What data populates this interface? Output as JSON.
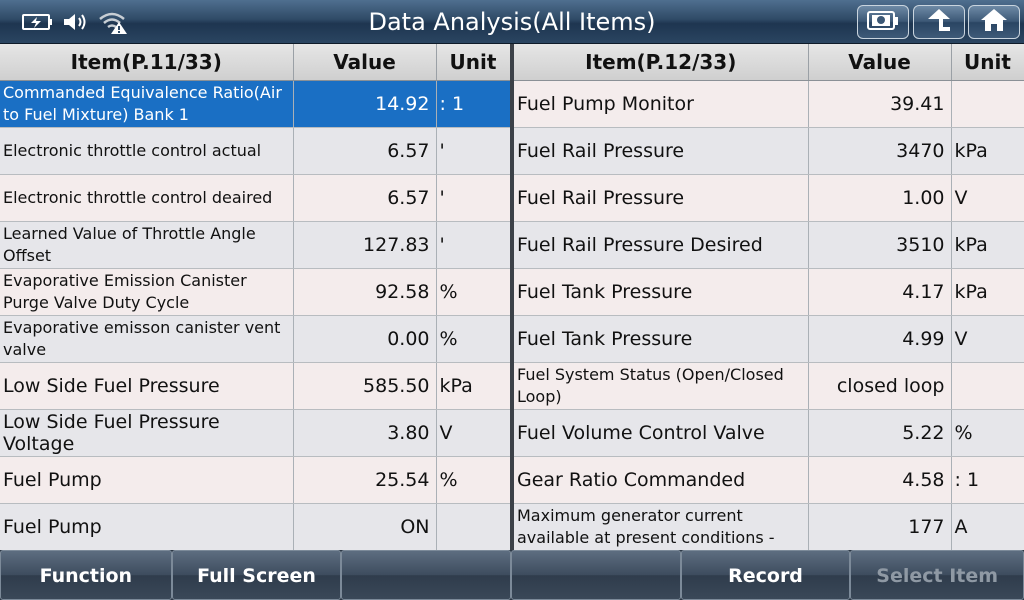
{
  "title": "Data Analysis(All Items)",
  "status_icons": [
    "battery-charging-icon",
    "speaker-icon",
    "wifi-warning-icon"
  ],
  "toolbar_icons": [
    "screenshot-icon",
    "back-icon",
    "home-icon"
  ],
  "left": {
    "headers": {
      "item": "Item(P.11/33)",
      "value": "Value",
      "unit": "Unit"
    },
    "rows": [
      {
        "item": "Commanded Equivalence Ratio(Air to Fuel Mixture) Bank 1",
        "value": "14.92",
        "unit": ": 1",
        "selected": true
      },
      {
        "item": "Electronic throttle control actual",
        "value": "6.57",
        "unit": "'"
      },
      {
        "item": "Electronic throttle control deaired",
        "value": "6.57",
        "unit": "'"
      },
      {
        "item": "Learned Value of Throttle Angle Offset",
        "value": "127.83",
        "unit": "'"
      },
      {
        "item": "Evaporative Emission Canister Purge Valve Duty Cycle",
        "value": "92.58",
        "unit": "%"
      },
      {
        "item": "Evaporative emisson canister vent valve",
        "value": "0.00",
        "unit": "%"
      },
      {
        "item": "Low Side Fuel Pressure",
        "value": "585.50",
        "unit": "kPa"
      },
      {
        "item": "Low Side Fuel Pressure Voltage",
        "value": "3.80",
        "unit": "V"
      },
      {
        "item": "Fuel Pump",
        "value": "25.54",
        "unit": "%"
      },
      {
        "item": "Fuel Pump",
        "value": "ON",
        "unit": ""
      }
    ]
  },
  "right": {
    "headers": {
      "item": "Item(P.12/33)",
      "value": "Value",
      "unit": "Unit"
    },
    "rows": [
      {
        "item": "Fuel Pump Monitor",
        "value": "39.41",
        "unit": ""
      },
      {
        "item": "Fuel Rail Pressure",
        "value": "3470",
        "unit": "kPa"
      },
      {
        "item": "Fuel Rail Pressure",
        "value": "1.00",
        "unit": "V"
      },
      {
        "item": "Fuel Rail Pressure Desired",
        "value": "3510",
        "unit": "kPa"
      },
      {
        "item": "Fuel Tank Pressure",
        "value": "4.17",
        "unit": "kPa"
      },
      {
        "item": "Fuel Tank Pressure",
        "value": "4.99",
        "unit": "V"
      },
      {
        "item": "Fuel System Status (Open/Closed Loop)",
        "value": "closed loop",
        "unit": ""
      },
      {
        "item": "Fuel Volume Control Valve",
        "value": "5.22",
        "unit": "%"
      },
      {
        "item": "Gear Ratio Commanded",
        "value": "4.58",
        "unit": ": 1"
      },
      {
        "item": "Maximum generator current available at present conditions -",
        "value": "177",
        "unit": "A"
      }
    ]
  },
  "bottom_buttons": [
    {
      "label": "Function",
      "enabled": true
    },
    {
      "label": "Full Screen",
      "enabled": true
    },
    {
      "label": "",
      "enabled": true
    },
    {
      "label": "",
      "enabled": true
    },
    {
      "label": "Record",
      "enabled": true
    },
    {
      "label": "Select Item",
      "enabled": false
    }
  ],
  "colors": {
    "selected_row": "#1a6fc4",
    "title_bar": "#2f4a66",
    "disabled_text": "#8f99a4"
  }
}
